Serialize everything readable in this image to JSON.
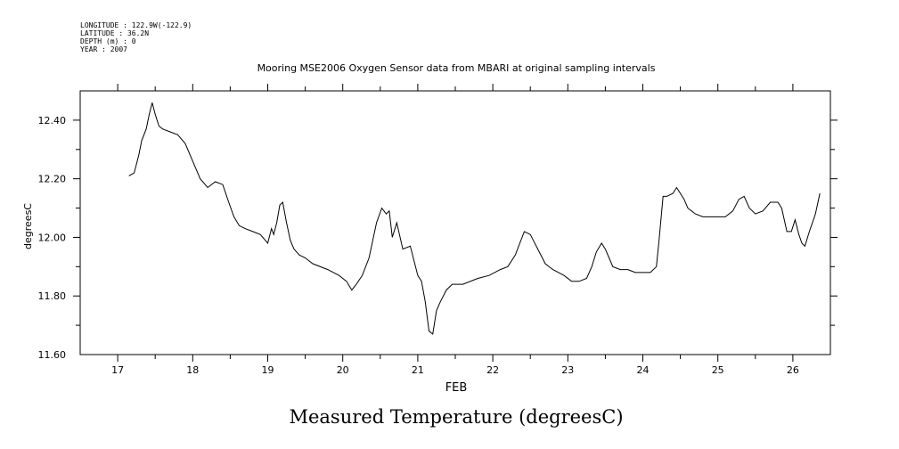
{
  "header": {
    "meta_lines": [
      "LONGITUDE : 122.9W(-122.9)",
      "LATITUDE : 36.2N",
      "DEPTH (m) : 0",
      "YEAR : 2007"
    ]
  },
  "caption": "Measured Temperature (degreesC)",
  "chart_data": {
    "type": "line",
    "title": "Mooring MSE2006 Oxygen Sensor data from MBARI at original sampling intervals",
    "xlabel": "FEB",
    "ylabel": "degreesC",
    "xlim": [
      16.5,
      26.5
    ],
    "ylim": [
      11.6,
      12.5
    ],
    "x_ticks": [
      17,
      18,
      19,
      20,
      21,
      22,
      23,
      24,
      25,
      26
    ],
    "x_tick_labels": [
      "17",
      "18",
      "19",
      "20",
      "21",
      "22",
      "23",
      "24",
      "25",
      "26"
    ],
    "y_ticks": [
      11.6,
      11.8,
      12.0,
      12.2,
      12.4
    ],
    "y_tick_labels": [
      "11.60",
      "11.80",
      "12.00",
      "12.20",
      "12.40"
    ],
    "grid": false,
    "line_color": "#000000",
    "series": [
      {
        "x": [
          17.15,
          17.22,
          17.28,
          17.32,
          17.38,
          17.42,
          17.46,
          17.5,
          17.55,
          17.6,
          17.7,
          17.8,
          17.9,
          18.0,
          18.1,
          18.2,
          18.3,
          18.4,
          18.48,
          18.55,
          18.62,
          18.7,
          18.8,
          18.9,
          19.0,
          19.05,
          19.08,
          19.12,
          19.16,
          19.2,
          19.25,
          19.3,
          19.35,
          19.42,
          19.5,
          19.6,
          19.8,
          19.95,
          20.05,
          20.12,
          20.18,
          20.26,
          20.35,
          20.45,
          20.52,
          20.58,
          20.62,
          20.66,
          20.72,
          20.8,
          20.9,
          21.0,
          21.05,
          21.1,
          21.15,
          21.2,
          21.25,
          21.3,
          21.38,
          21.46,
          21.6,
          21.8,
          21.95,
          22.1,
          22.2,
          22.3,
          22.36,
          22.42,
          22.5,
          22.6,
          22.7,
          22.8,
          22.95,
          23.05,
          23.15,
          23.25,
          23.32,
          23.38,
          23.45,
          23.5,
          23.55,
          23.6,
          23.7,
          23.8,
          23.9,
          24.0,
          24.1,
          24.18,
          24.22,
          24.27,
          24.32,
          24.4,
          24.45,
          24.5,
          24.55,
          24.6,
          24.65,
          24.7,
          24.8,
          24.9,
          25.0,
          25.1,
          25.2,
          25.28,
          25.35,
          25.42,
          25.5,
          25.6,
          25.7,
          25.8,
          25.85,
          25.92,
          25.98,
          26.03,
          26.08,
          26.12,
          26.16,
          26.22,
          26.3,
          26.36
        ],
        "y": [
          12.21,
          12.22,
          12.28,
          12.33,
          12.37,
          12.42,
          12.46,
          12.42,
          12.38,
          12.37,
          12.36,
          12.35,
          12.32,
          12.26,
          12.2,
          12.17,
          12.19,
          12.18,
          12.12,
          12.07,
          12.04,
          12.03,
          12.02,
          12.01,
          11.98,
          12.03,
          12.01,
          12.05,
          12.11,
          12.12,
          12.05,
          11.99,
          11.96,
          11.94,
          11.93,
          11.91,
          11.89,
          11.87,
          11.85,
          11.82,
          11.84,
          11.87,
          11.93,
          12.05,
          12.1,
          12.08,
          12.09,
          12.0,
          12.05,
          11.96,
          11.97,
          11.87,
          11.85,
          11.78,
          11.68,
          11.67,
          11.75,
          11.78,
          11.82,
          11.84,
          11.84,
          11.86,
          11.87,
          11.89,
          11.9,
          11.94,
          11.98,
          12.02,
          12.01,
          11.96,
          11.91,
          11.89,
          11.87,
          11.85,
          11.85,
          11.86,
          11.9,
          11.95,
          11.98,
          11.96,
          11.93,
          11.9,
          11.89,
          11.89,
          11.88,
          11.88,
          11.88,
          11.9,
          12.0,
          12.14,
          12.14,
          12.15,
          12.17,
          12.15,
          12.13,
          12.1,
          12.09,
          12.08,
          12.07,
          12.07,
          12.07,
          12.07,
          12.09,
          12.13,
          12.14,
          12.1,
          12.08,
          12.09,
          12.12,
          12.12,
          12.1,
          12.02,
          12.02,
          12.06,
          12.01,
          11.98,
          11.97,
          12.02,
          12.08,
          12.15
        ]
      }
    ]
  }
}
